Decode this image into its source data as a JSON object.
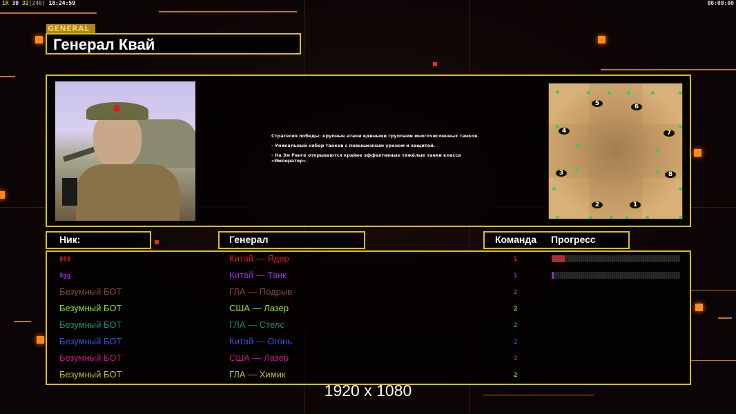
{
  "status_bar": {
    "parts": [
      {
        "text": "1R",
        "color": "#9acd32"
      },
      {
        "text": "30",
        "color": "#e0e0e0"
      },
      {
        "text": "32",
        "color": "#e0c020"
      },
      {
        "text": "[240]",
        "color": "#888888"
      },
      {
        "text": "18:24:59",
        "color": "#ffffff"
      }
    ],
    "clock": "00:00:00"
  },
  "header": {
    "section_label": "GENERAL",
    "title": "Генерал Квай"
  },
  "description": [
    "Стратегия победы: крупные атаки едиными группами многочисленных танков.",
    "- Уникальный набор танков с повышенным уроном и защитой.",
    "- На 3м Ранге открываются крайне эффективные тяжёлые танки класса «Император»."
  ],
  "map": {
    "start_positions": [
      "1",
      "2",
      "3",
      "4",
      "5",
      "6",
      "7",
      "8"
    ]
  },
  "columns": {
    "nick": "Ник:",
    "general": "Генерал",
    "team": "Команда",
    "progress": "Прогресс"
  },
  "players": [
    {
      "nick": "888",
      "general": "Китай — Ядер",
      "team": "1",
      "color": "#e01818",
      "progress": 10
    },
    {
      "nick": "8gg",
      "general": "Китай — Танк",
      "team": "1",
      "color": "#9a28d8",
      "progress": 1
    },
    {
      "nick": "Безумный БОТ",
      "general": "ГЛА — Подрыв",
      "team": "2",
      "color": "#8a4a30",
      "progress": null
    },
    {
      "nick": "Безумный БОТ",
      "general": "США — Лазер",
      "team": "2",
      "color": "#9ae020",
      "progress": null
    },
    {
      "nick": "Безумный БОТ",
      "general": "ГЛА — Стелс",
      "team": "2",
      "color": "#1a8a80",
      "progress": null
    },
    {
      "nick": "Безумный БОТ",
      "general": "Китай — Огонь",
      "team": "2",
      "color": "#3a50d8",
      "progress": null
    },
    {
      "nick": "Безумный БОТ",
      "general": "США — Лазер",
      "team": "2",
      "color": "#c01880",
      "progress": null
    },
    {
      "nick": "Безумный БОТ",
      "general": "ГЛА — Химик",
      "team": "2",
      "color": "#c8c020",
      "progress": null
    }
  ],
  "resolution": "1920 x 1080",
  "colors": {
    "frame": "#d8c020",
    "accent": "#ff8a1a"
  }
}
